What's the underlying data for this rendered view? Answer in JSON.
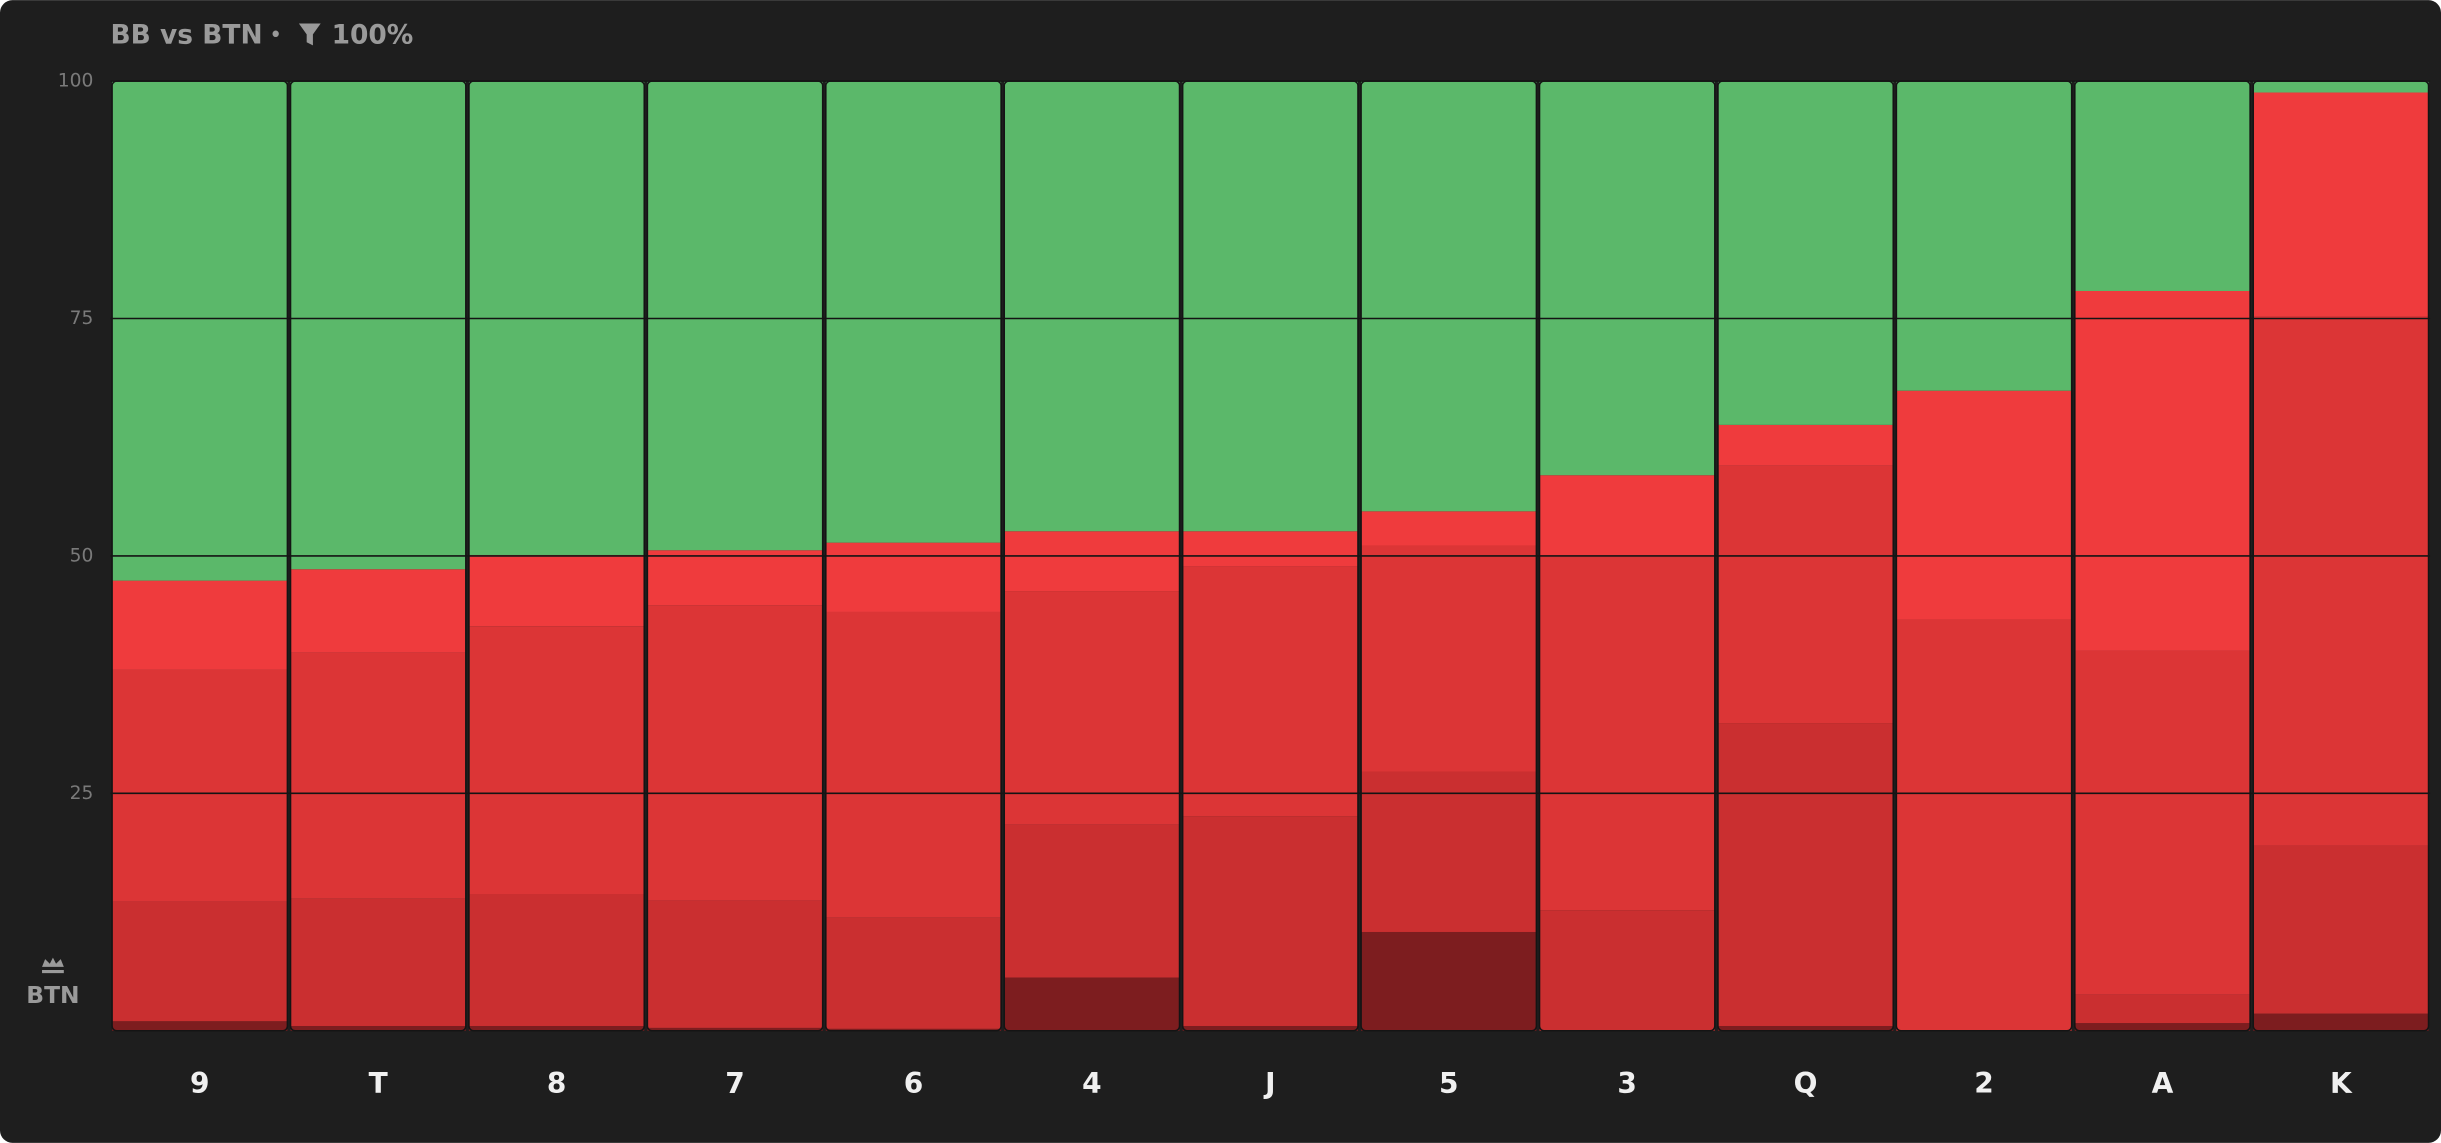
{
  "chart_data": {
    "type": "stacked_bar",
    "title": "BB vs BTN",
    "separator": "•",
    "subtitle": "100%",
    "annotation": "BTN",
    "categories": [
      "9",
      "T",
      "8",
      "7",
      "6",
      "4",
      "J",
      "5",
      "3",
      "Q",
      "2",
      "A",
      "K"
    ],
    "series": [
      {
        "color": "#7d1d1f",
        "values": [
          1,
          0.5,
          0.5,
          0.3,
          0.2,
          5.6,
          0.5,
          10.4,
          0,
          0.5,
          0,
          0.8,
          1.8
        ]
      },
      {
        "color": "#ca2f30",
        "values": [
          12.6,
          13.4,
          13.9,
          13.4,
          11.7,
          16.1,
          22.1,
          16.9,
          12.7,
          31.9,
          0,
          3.0,
          17.7
        ]
      },
      {
        "color": "#dc3536",
        "values": [
          24.4,
          25.9,
          28.2,
          31.1,
          32.2,
          24.6,
          26.3,
          23.8,
          37.1,
          27.1,
          43.3,
          36.2,
          55.7
        ]
      },
      {
        "color": "#ef3b3d",
        "values": [
          9.4,
          8.8,
          7.5,
          5.8,
          7.3,
          6.3,
          3.7,
          3.6,
          8.7,
          4.3,
          24.1,
          37.9,
          23.6
        ]
      },
      {
        "color": "#5bb86a",
        "values": [
          52.6,
          51.4,
          49.9,
          49.4,
          48.6,
          47.4,
          47.4,
          45.3,
          41.5,
          36.2,
          32.6,
          22.1,
          1.2
        ]
      }
    ],
    "ylim": [
      0,
      100
    ],
    "yticks": [
      25,
      50,
      75,
      100
    ],
    "grid": true
  }
}
